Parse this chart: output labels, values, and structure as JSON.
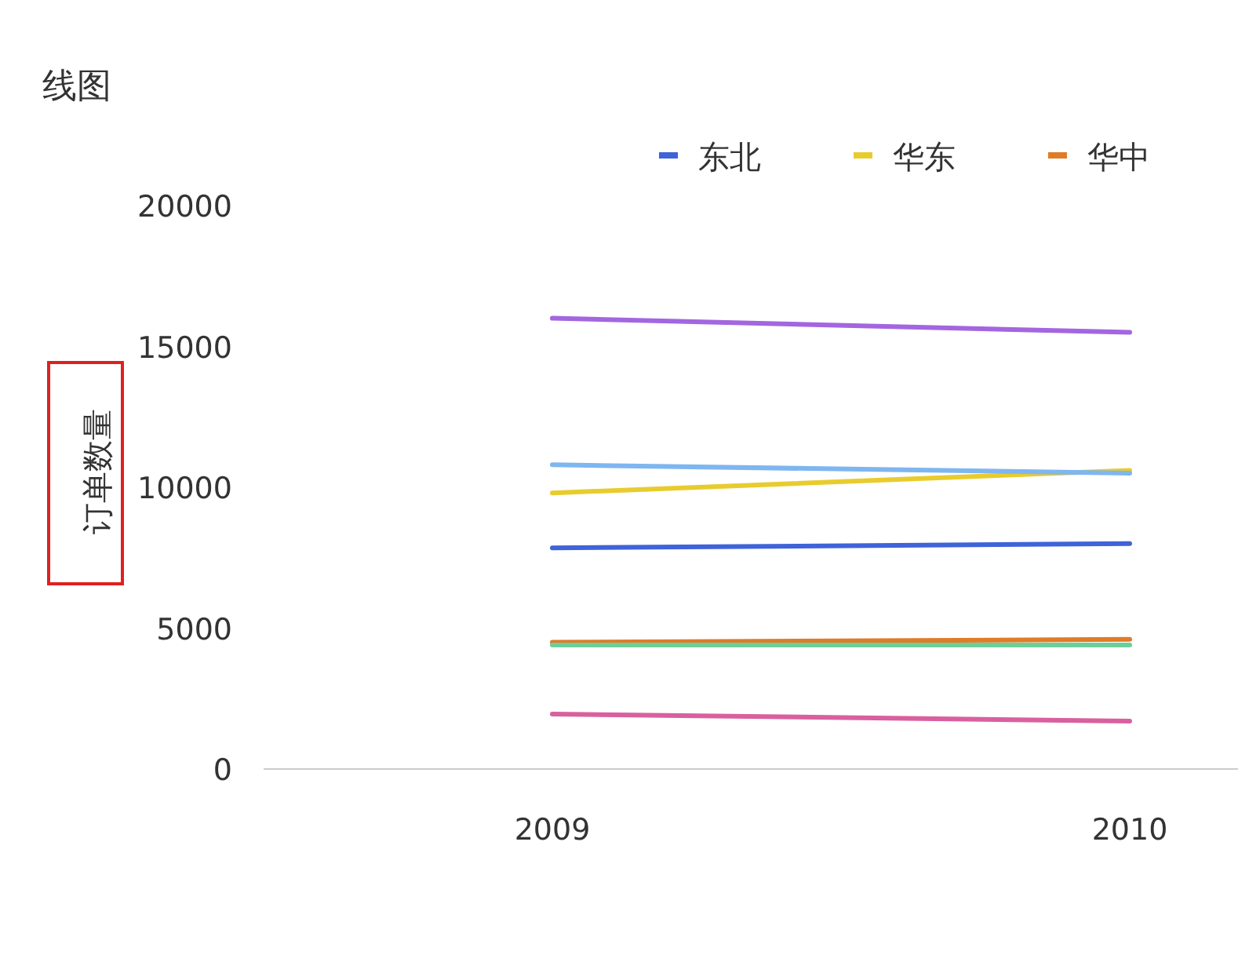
{
  "chart_data": {
    "type": "line",
    "title": "线图",
    "ylabel": "订单数量",
    "categories": [
      "2009",
      "2010"
    ],
    "ylim": [
      0,
      20000
    ],
    "yticks": [
      0,
      5000,
      10000,
      15000,
      20000
    ],
    "legend": "top",
    "line_style": "solid",
    "marker": "none",
    "series": [
      {
        "name": "东北",
        "color": "#3f63d9",
        "values": [
          7850,
          8000
        ]
      },
      {
        "name": "华东",
        "color": "#e8cc2e",
        "values": [
          9800,
          10600
        ]
      },
      {
        "name": "华中",
        "color": "#e07b28",
        "values": [
          4500,
          4600
        ]
      },
      {
        "color": "#a366e0",
        "values": [
          16000,
          15500
        ]
      },
      {
        "color": "#7eb6f0",
        "values": [
          10800,
          10500
        ]
      },
      {
        "color": "#6ccf9a",
        "values": [
          4400,
          4400
        ]
      },
      {
        "color": "#d9609e",
        "values": [
          1950,
          1700
        ]
      }
    ]
  }
}
